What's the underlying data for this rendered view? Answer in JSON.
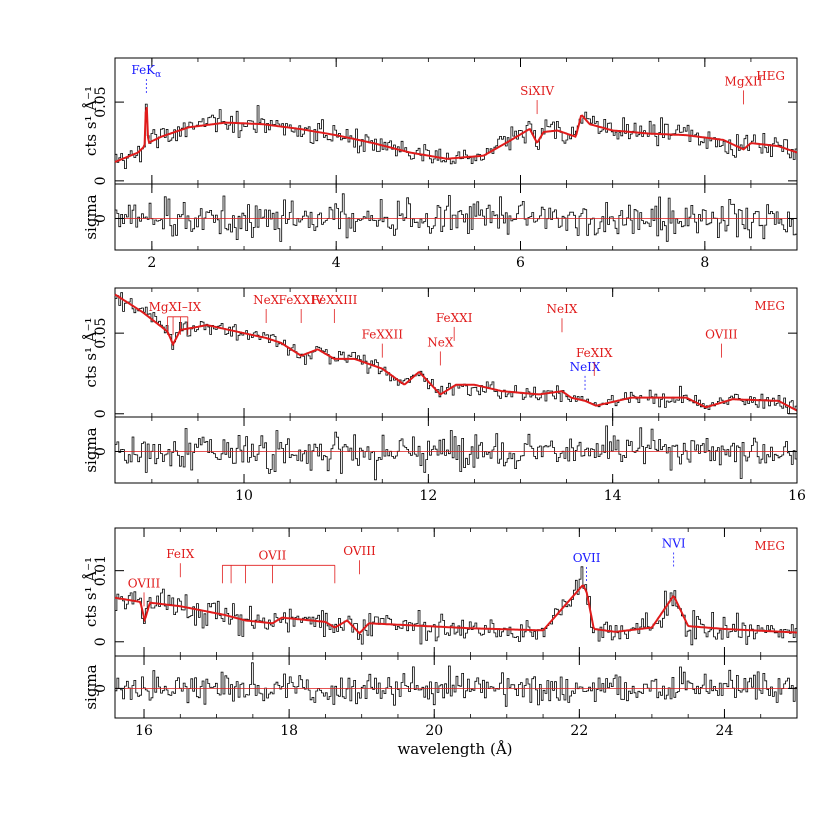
{
  "colors": {
    "model": "#e01b1b",
    "data": "#000000",
    "red_label": "#e01b1b",
    "blue_label": "#1a1aff"
  },
  "figure": {
    "xlabel": "wavelength (Å)"
  },
  "chart_data": [
    {
      "type": "line",
      "panel": "HEG",
      "xlim": [
        1.6,
        9.0
      ],
      "ylim": [
        -0.002,
        0.078
      ],
      "resid_ylim": [
        -3.2,
        3.5
      ],
      "xticks": [
        "2",
        "4",
        "6",
        "8"
      ],
      "yticks": [
        "0",
        "0.05"
      ],
      "resid_yticks": [
        "0"
      ],
      "ylabel": "cts s¹ Å⁻¹",
      "resid_ylabel": "sigma",
      "series": [
        {
          "values": {
            "x": [
              1.6,
              1.85,
              1.92,
              1.94,
              1.96,
              2.1,
              2.4,
              2.8,
              3.2,
              3.6,
              4.0,
              4.4,
              4.8,
              5.2,
              5.6,
              5.9,
              6.1,
              6.18,
              6.25,
              6.4,
              6.6,
              6.66,
              6.75,
              7.0,
              7.4,
              7.8,
              8.2,
              8.42,
              8.5,
              8.8,
              9.0
            ],
            "y": [
              0.012,
              0.018,
              0.022,
              0.055,
              0.024,
              0.028,
              0.034,
              0.037,
              0.036,
              0.033,
              0.029,
              0.024,
              0.018,
              0.014,
              0.016,
              0.026,
              0.033,
              0.024,
              0.031,
              0.032,
              0.028,
              0.042,
              0.036,
              0.032,
              0.03,
              0.029,
              0.026,
              0.02,
              0.024,
              0.022,
              0.018
            ]
          },
          "noise": 0.0045
        }
      ],
      "annotations": [
        {
          "label": "FeK",
          "sub": "α",
          "x": 1.94,
          "color": "blue"
        },
        {
          "label": "SiXIV",
          "x": 6.18,
          "color": "red"
        },
        {
          "label": "MgXII",
          "x": 8.42,
          "color": "red"
        }
      ]
    },
    {
      "type": "line",
      "panel": "MEG",
      "xlim": [
        8.6,
        16.0
      ],
      "ylim": [
        -0.002,
        0.078
      ],
      "resid_ylim": [
        -3.2,
        3.5
      ],
      "xticks": [
        "10",
        "12",
        "14",
        "16"
      ],
      "yticks": [
        "0",
        "0.05"
      ],
      "resid_yticks": [
        "0"
      ],
      "ylabel": "cts s¹ Å⁻¹",
      "resid_ylabel": "sigma",
      "series": [
        {
          "values": {
            "x": [
              8.6,
              8.9,
              9.17,
              9.23,
              9.31,
              9.6,
              10.0,
              10.24,
              10.4,
              10.62,
              10.8,
              10.98,
              11.2,
              11.5,
              11.74,
              11.9,
              12.13,
              12.3,
              12.5,
              12.8,
              13.2,
              13.45,
              13.55,
              13.7,
              13.82,
              14.2,
              14.8,
              15.01,
              15.3,
              15.8,
              16.0
            ],
            "y": [
              0.074,
              0.063,
              0.051,
              0.043,
              0.052,
              0.055,
              0.05,
              0.047,
              0.044,
              0.036,
              0.04,
              0.034,
              0.034,
              0.028,
              0.018,
              0.026,
              0.012,
              0.018,
              0.018,
              0.014,
              0.012,
              0.014,
              0.01,
              0.008,
              0.005,
              0.01,
              0.01,
              0.004,
              0.009,
              0.008,
              0.002
            ]
          },
          "noise": 0.003
        }
      ],
      "annotations": [
        {
          "label": "MgXI–IX",
          "x": 9.25,
          "color": "red",
          "bracket": [
            9.17,
            9.23,
            9.31,
            9.39
          ]
        },
        {
          "label": "NeX",
          "x": 10.24,
          "color": "red"
        },
        {
          "label": "FeXXIV",
          "x": 10.62,
          "color": "red"
        },
        {
          "label": "FeXXIII",
          "x": 10.98,
          "color": "red"
        },
        {
          "label": "FeXXII",
          "x": 11.5,
          "color": "red"
        },
        {
          "label": "NeX",
          "x": 12.13,
          "color": "red"
        },
        {
          "label": "FeXXI",
          "x": 12.28,
          "color": "red"
        },
        {
          "label": "NeIX",
          "x": 13.45,
          "color": "red"
        },
        {
          "label": "NeIX",
          "x": 13.7,
          "color": "blue"
        },
        {
          "label": "FeXIX",
          "x": 13.8,
          "color": "red"
        },
        {
          "label": "OVIII",
          "x": 15.18,
          "color": "red"
        }
      ]
    },
    {
      "type": "line",
      "panel": "MEG",
      "xlim": [
        15.6,
        25.0
      ],
      "ylim": [
        -0.002,
        0.016
      ],
      "resid_ylim": [
        -3.2,
        3.5
      ],
      "xticks": [
        "16",
        "18",
        "20",
        "22",
        "24"
      ],
      "yticks": [
        "0",
        "0.01"
      ],
      "resid_yticks": [
        "0"
      ],
      "ylabel": "cts s¹ Å⁻¹",
      "resid_ylabel": "sigma",
      "series": [
        {
          "values": {
            "x": [
              15.6,
              15.95,
              16.01,
              16.08,
              16.5,
              17.1,
              17.4,
              17.77,
              17.9,
              18.5,
              18.63,
              18.8,
              18.97,
              19.1,
              19.5,
              20.5,
              21.5,
              22.05,
              22.1,
              22.2,
              22.5,
              23.0,
              23.3,
              23.5,
              24.0,
              25.0
            ],
            "y": [
              0.0062,
              0.0056,
              0.003,
              0.0055,
              0.005,
              0.0038,
              0.003,
              0.0026,
              0.0034,
              0.0028,
              0.002,
              0.003,
              0.0012,
              0.0026,
              0.0024,
              0.0019,
              0.0016,
              0.008,
              0.007,
              0.0018,
              0.0014,
              0.002,
              0.0065,
              0.0022,
              0.0018,
              0.0013
            ]
          },
          "noise": 0.0013
        }
      ],
      "annotations": [
        {
          "label": "OVIII",
          "x": 16.0,
          "color": "red"
        },
        {
          "label": "FeIX",
          "x": 16.5,
          "color": "red"
        },
        {
          "label": "OVII",
          "x": 17.77,
          "color": "red",
          "bracket": [
            17.08,
            17.2,
            17.4,
            17.77,
            18.63
          ]
        },
        {
          "label": "OVIII",
          "x": 18.97,
          "color": "red"
        },
        {
          "label": "OVII",
          "x": 22.1,
          "color": "blue"
        },
        {
          "label": "NVI",
          "x": 23.3,
          "color": "blue"
        }
      ]
    }
  ]
}
